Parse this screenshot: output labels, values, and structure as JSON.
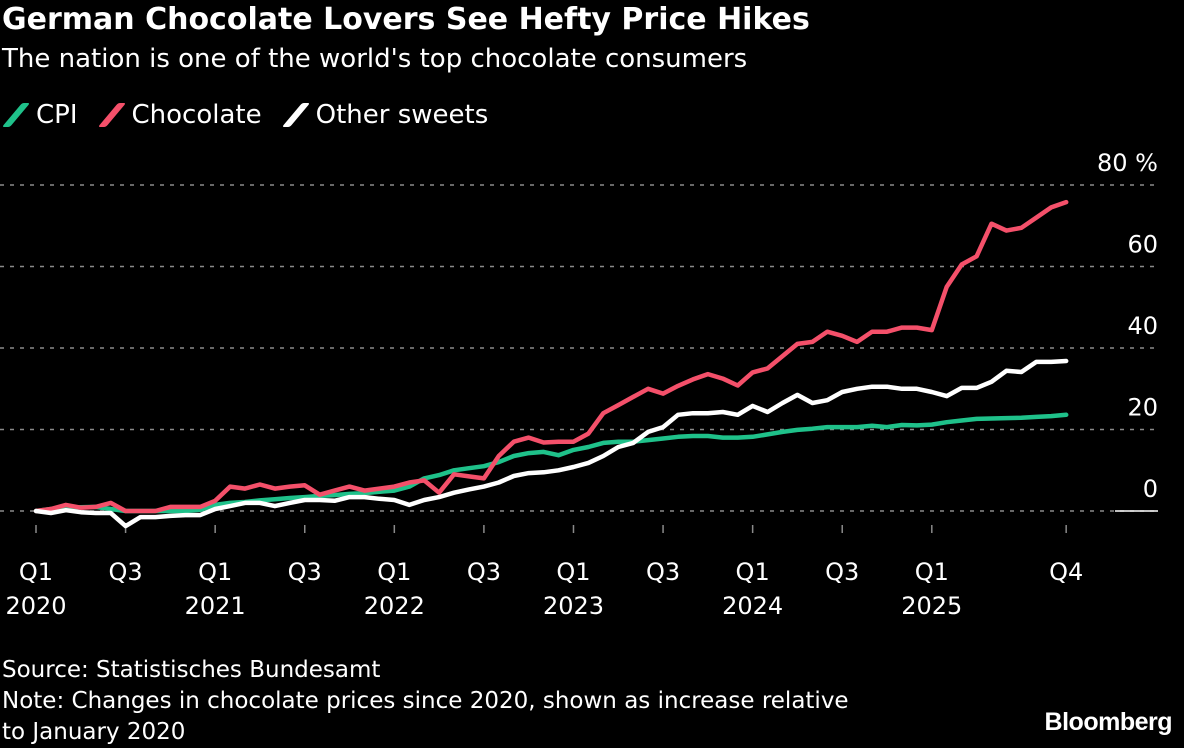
{
  "chart_data": {
    "type": "line",
    "title": "German Chocolate Lovers See Hefty Price Hikes",
    "subtitle": "The nation is one of the world's top chocolate consumers",
    "ylabel": "",
    "xlabel": "",
    "y_unit": "%",
    "ylim": [
      -5,
      80
    ],
    "yticks": [
      0,
      20,
      40,
      60,
      80
    ],
    "grid": true,
    "legend": "top-left",
    "xticks": [
      {
        "date": "2020-01",
        "q": "Q1",
        "year": "2020"
      },
      {
        "date": "2020-07",
        "q": "Q3",
        "year": ""
      },
      {
        "date": "2021-01",
        "q": "Q1",
        "year": "2021"
      },
      {
        "date": "2021-07",
        "q": "Q3",
        "year": ""
      },
      {
        "date": "2022-01",
        "q": "Q1",
        "year": "2022"
      },
      {
        "date": "2022-07",
        "q": "Q3",
        "year": ""
      },
      {
        "date": "2023-01",
        "q": "Q1",
        "year": "2023"
      },
      {
        "date": "2023-07",
        "q": "Q3",
        "year": ""
      },
      {
        "date": "2024-01",
        "q": "Q1",
        "year": "2024"
      },
      {
        "date": "2024-07",
        "q": "Q3",
        "year": ""
      },
      {
        "date": "2025-01",
        "q": "Q1",
        "year": "2025"
      },
      {
        "date": "2025-10",
        "q": "Q4",
        "year": ""
      }
    ],
    "x": [
      "2020-01",
      "2020-02",
      "2020-03",
      "2020-04",
      "2020-05",
      "2020-06",
      "2020-07",
      "2020-08",
      "2020-09",
      "2020-10",
      "2020-11",
      "2020-12",
      "2021-01",
      "2021-02",
      "2021-03",
      "2021-04",
      "2021-05",
      "2021-06",
      "2021-07",
      "2021-08",
      "2021-09",
      "2021-10",
      "2021-11",
      "2021-12",
      "2022-01",
      "2022-02",
      "2022-03",
      "2022-04",
      "2022-05",
      "2022-06",
      "2022-07",
      "2022-08",
      "2022-09",
      "2022-10",
      "2022-11",
      "2022-12",
      "2023-01",
      "2023-02",
      "2023-03",
      "2023-04",
      "2023-05",
      "2023-06",
      "2023-07",
      "2023-08",
      "2023-09",
      "2023-10",
      "2023-11",
      "2023-12",
      "2024-01",
      "2024-02",
      "2024-03",
      "2024-04",
      "2024-05",
      "2024-06",
      "2024-07",
      "2024-08",
      "2024-09",
      "2024-10",
      "2024-11",
      "2024-12",
      "2025-01",
      "2025-02",
      "2025-03",
      "2025-04",
      "2025-05",
      "2025-06",
      "2025-07",
      "2025-08",
      "2025-09",
      "2025-10"
    ],
    "series": [
      {
        "name": "CPI",
        "color": "#1fc18a",
        "values": [
          0,
          0.5,
          0.7,
          0.9,
          1,
          0.5,
          0,
          0,
          0,
          0,
          0,
          0.3,
          1.5,
          2,
          2.2,
          2.6,
          2.9,
          3.2,
          3.4,
          3.7,
          3.9,
          4.2,
          4.4,
          4.7,
          5,
          6,
          8,
          8.8,
          10,
          10.5,
          11,
          12,
          13.5,
          14.2,
          14.5,
          13.7,
          15,
          15.7,
          16.7,
          17,
          17,
          17.4,
          17.8,
          18.2,
          18.4,
          18.4,
          18,
          18,
          18.2,
          18.8,
          19.4,
          19.9,
          20.2,
          20.6,
          20.6,
          20.6,
          20.9,
          20.6,
          21.1,
          21,
          21.2,
          21.8,
          22.2,
          22.6,
          22.7,
          22.8,
          22.9,
          23.1,
          23.3,
          23.6
        ]
      },
      {
        "name": "Chocolate",
        "color": "#f4506a",
        "values": [
          0,
          0.5,
          1.5,
          0.8,
          1,
          2,
          0,
          0,
          0,
          1,
          1,
          1,
          2.5,
          6,
          5.5,
          6.5,
          5.5,
          6,
          6.3,
          4,
          5,
          6,
          5,
          5.5,
          6,
          7,
          7.5,
          4.5,
          9,
          8.5,
          8,
          13.5,
          17,
          18,
          16.8,
          17,
          17,
          19,
          24,
          26,
          28,
          30,
          28.8,
          30.7,
          32.3,
          33.6,
          32.5,
          30.8,
          34,
          35,
          38,
          41,
          41.5,
          44,
          43,
          41.5,
          44,
          44,
          45,
          45,
          44.4,
          55,
          60.5,
          62.5,
          70.5,
          68.8,
          69.5,
          72,
          74.5,
          75.8
        ]
      },
      {
        "name": "Other sweets",
        "color": "#ffffff",
        "values": [
          0,
          -0.5,
          0.2,
          -0.3,
          -0.5,
          -0.5,
          -3.7,
          -1.5,
          -1.5,
          -1.2,
          -1,
          -1,
          0.5,
          1.2,
          2,
          2,
          1.2,
          2,
          2.7,
          2.7,
          2.5,
          3.4,
          3.4,
          3,
          2.7,
          1.5,
          2.7,
          3.4,
          4.5,
          5.3,
          6,
          7,
          8.6,
          9.3,
          9.5,
          10,
          10.8,
          11.8,
          13.5,
          15.7,
          16.7,
          19.4,
          20.6,
          23.6,
          24,
          24,
          24.3,
          23.6,
          25.8,
          24.3,
          26.5,
          28.5,
          26.5,
          27.2,
          29.2,
          30,
          30.5,
          30.5,
          30,
          30,
          29.2,
          28.2,
          30.2,
          30.2,
          31.7,
          34.4,
          34.1,
          36.6,
          36.6,
          36.8
        ]
      }
    ]
  },
  "footer": {
    "source": "Source: Statistisches Bundesamt",
    "note_line1": "Note: Changes in chocolate prices since 2020, shown as increase relative",
    "note_line2": "to January 2020",
    "brand": "Bloomberg"
  }
}
